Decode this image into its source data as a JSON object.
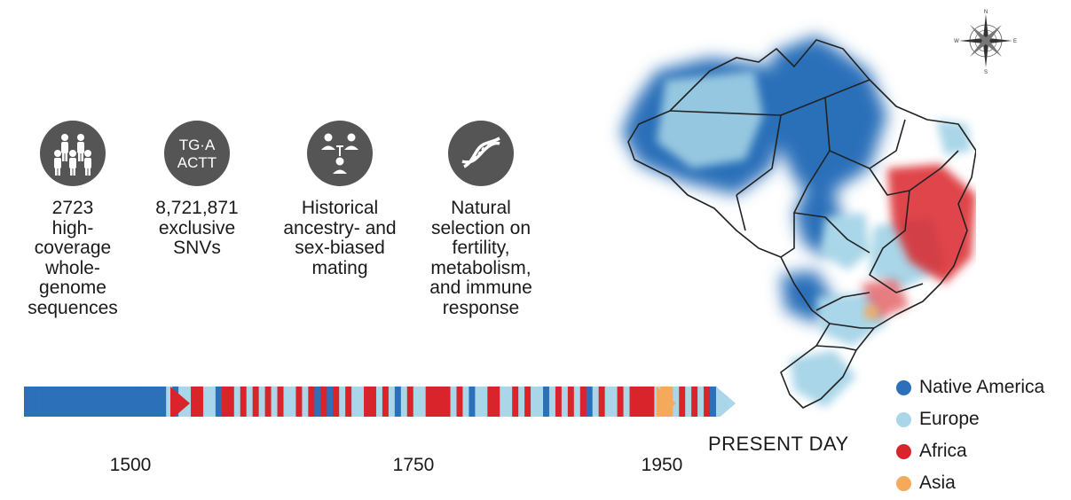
{
  "stats": [
    {
      "icon": "people-group-icon",
      "label": "2723\nhigh-\ncoverage\nwhole-\ngenome\nsequences"
    },
    {
      "icon": "snv-code-icon",
      "code": "TG·A\nACTT",
      "label": "8,721,871\nexclusive\nSNVs"
    },
    {
      "icon": "family-tree-icon",
      "label": "Historical\nancestry- and\nsex-biased\nmating"
    },
    {
      "icon": "dna-helix-icon",
      "label": "Natural\nselection on\nfertility,\nmetabolism,\nand immune\nresponse"
    }
  ],
  "timeline": {
    "ticks": [
      "1500",
      "1750",
      "1950"
    ],
    "end_label": "PRESENT DAY",
    "segments": "BBBBBBBBBBBBBBBBBBBBBBBLBLLRRLLBRRLRLRLRLRLLRLRBRBRLRLLRRLRLBLRLLRRRRLRLBLLRRLLRLRLLBLRLRLRBLRLLRLRRRRLOOLRLRLRB"
  },
  "legend": [
    {
      "label": "Native America",
      "color": "#2b70b9"
    },
    {
      "label": "Europe",
      "color": "#a9d6e8"
    },
    {
      "label": "Africa",
      "color": "#d9242c"
    },
    {
      "label": "Asia",
      "color": "#f4a95c"
    }
  ],
  "compass": {
    "n": "N",
    "s": "S",
    "e": "E",
    "w": "W"
  }
}
